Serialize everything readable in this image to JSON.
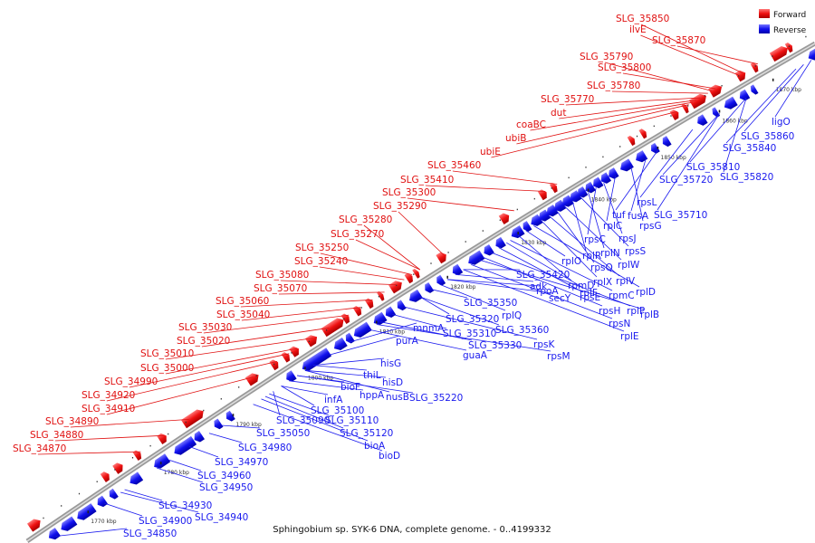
{
  "caption": "Sphingobium sp. SYK-6 DNA, complete genome. - 0..4199332",
  "legend": {
    "forward": {
      "label": "Forward",
      "color": "#ee1111"
    },
    "reverse": {
      "label": "Reverse",
      "color": "#1111ee"
    }
  },
  "ticks": [
    "1770 kbp",
    "1780 kbp",
    "1790 kbp",
    "1800 kbp",
    "1810 kbp",
    "1820 kbp",
    "1830 kbp",
    "1840 kbp",
    "1850 kbp",
    "1860 kbp",
    "1870 kbp"
  ],
  "forward_labels": [
    "SLG_35850",
    "ilvE",
    "SLG_35870",
    "SLG_35790",
    "SLG_35800",
    "SLG_35780",
    "SLG_35770",
    "dut",
    "coaBC",
    "ubiB",
    "ubiE",
    "SLG_35460",
    "SLG_35410",
    "SLG_35300",
    "SLG_35290",
    "SLG_35280",
    "SLG_35270",
    "SLG_35250",
    "SLG_35240",
    "SLG_35080",
    "SLG_35070",
    "SLG_35060",
    "SLG_35040",
    "SLG_35030",
    "SLG_35020",
    "SLG_35010",
    "SLG_35000",
    "SLG_34990",
    "SLG_34920",
    "SLG_34910",
    "SLG_34890",
    "SLG_34880",
    "SLG_34870"
  ],
  "reverse_labels": [
    "ligO",
    "SLG_35860",
    "SLG_35840",
    "SLG_35810",
    "SLG_35820",
    "SLG_35720",
    "SLG_35710",
    "rpsL",
    "tuf",
    "fusA",
    "rpsG",
    "rplC",
    "rpsJ",
    "rpsC",
    "rplN",
    "rpsS",
    "rplR",
    "rplW",
    "rpsQ",
    "rplV",
    "rplX",
    "rplD",
    "rplO",
    "rpmD",
    "rpmC",
    "rplF",
    "rpsE",
    "rplP",
    "rpsH",
    "rplB",
    "rpsN",
    "rplE",
    "SLG_35420",
    "adk",
    "secY",
    "rpoA",
    "rplQ",
    "SLG_35350",
    "SLG_35360",
    "SLG_35320",
    "rpsK",
    "SLG_35310",
    "SLG_35330",
    "rpsM",
    "guaA",
    "mnmA",
    "purA",
    "hisG",
    "thiL",
    "hisD",
    "nusB",
    "SLG_35220",
    "bioF",
    "hppA",
    "infA",
    "SLG_35100",
    "SLG_35090",
    "SLG_35110",
    "SLG_35050",
    "SLG_35120",
    "bioA",
    "bioD",
    "SLG_34980",
    "SLG_34970",
    "SLG_34960",
    "SLG_34950",
    "SLG_34930",
    "SLG_34900",
    "SLG_34940",
    "SLG_34850"
  ]
}
